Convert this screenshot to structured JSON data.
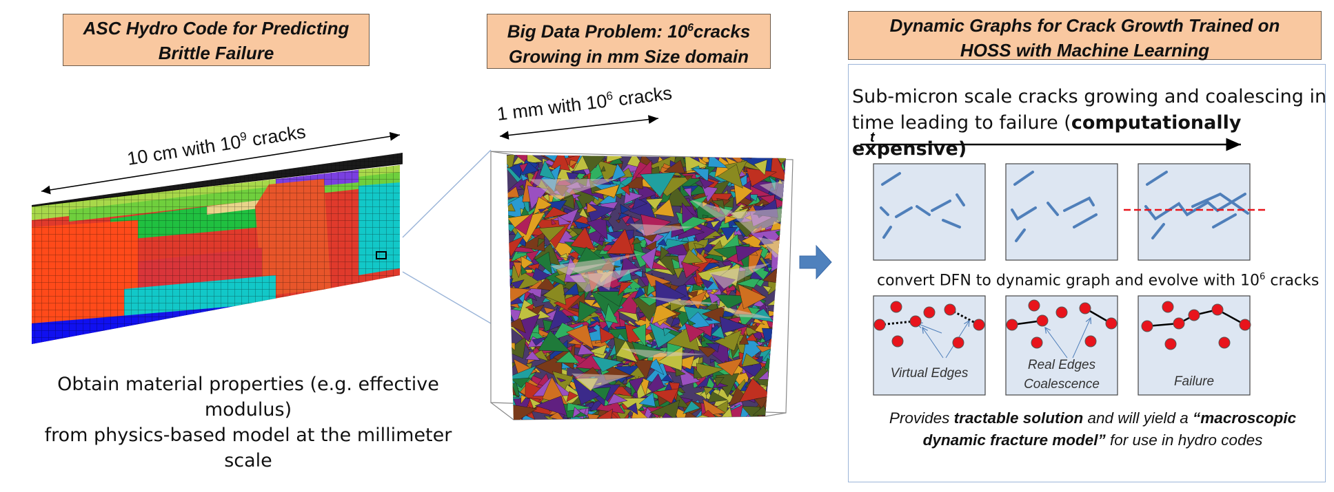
{
  "left": {
    "title_line1": "ASC Hydro Code for Predicting",
    "title_line2": "Brittle Failure",
    "dimension_label": "10 cm with 10",
    "dimension_exp": "9",
    "dimension_suffix": " cracks",
    "caption_line1": "Obtain material properties (e.g. effective modulus)",
    "caption_line2": "from physics-based model at the millimeter scale"
  },
  "middle": {
    "title_line1_pre": "Big Data Problem: 10",
    "title_line1_exp": "6",
    "title_line1_post": "cracks",
    "title_line2": "Growing in mm Size domain",
    "dimension_label": "1 mm with 10",
    "dimension_exp": "6",
    "dimension_suffix": " cracks"
  },
  "right": {
    "title_line1": "Dynamic Graphs for Crack Growth Trained on",
    "title_line2": "HOSS with Machine Learning",
    "intro_plain": "Sub-micron scale cracks growing and  coalescing in time leading to failure (",
    "intro_bold": "computationally expensive)",
    "time_label": "t",
    "convert_pre": "convert DFN to dynamic graph and evolve with 10",
    "convert_exp": "6",
    "convert_post": " cracks",
    "graph_labels": {
      "virtual": "Virtual Edges",
      "real_line1": "Real Edges",
      "real_line2": "Coalescence",
      "failure": "Failure"
    },
    "provides_1": "Provides ",
    "provides_bold1": "tractable solution",
    "provides_2": " and will yield a ",
    "provides_bold2": "“macroscopic dynamic fracture model”",
    "provides_3": " for use in hydro codes"
  },
  "colors": {
    "title_fill": "#f9c8a0",
    "panel_box": "#dde6f2",
    "crack_line": "#4f7fba",
    "node_red": "#e8141c",
    "failure_dash": "#e8141c",
    "arrow_blue": "#4f81bd"
  }
}
